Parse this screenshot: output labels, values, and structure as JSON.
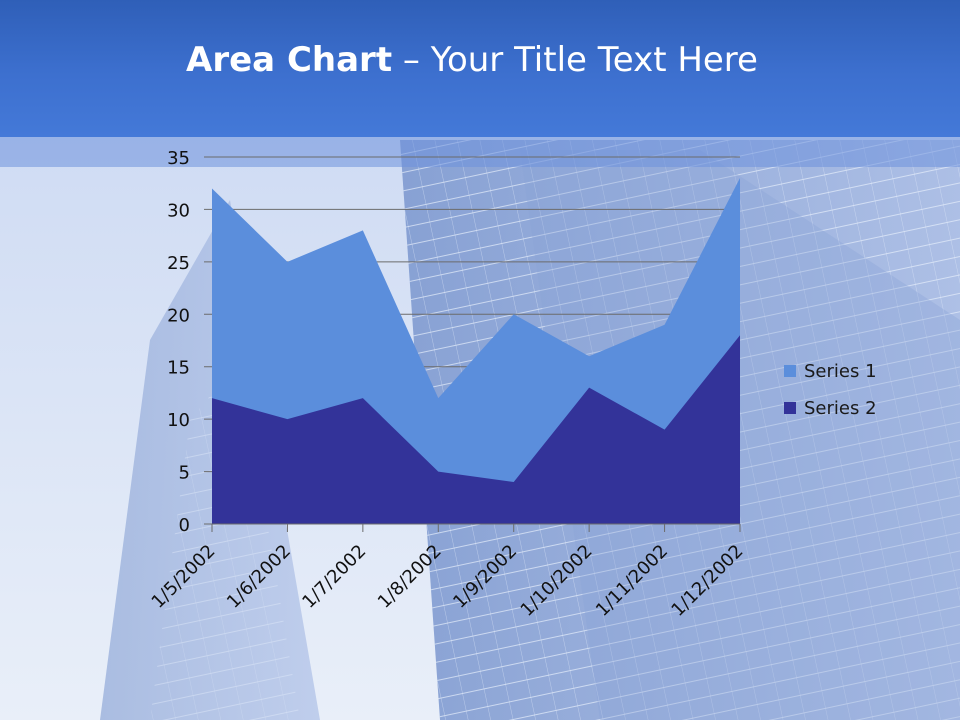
{
  "slide": {
    "title_bold": "Area Chart",
    "title_rest": " – Your Title Text Here"
  },
  "colors": {
    "series1": "#5b8edc",
    "series2": "#333399",
    "grid": "#6b6b6b",
    "axis_text": "#111111"
  },
  "chart_data": {
    "type": "area",
    "categories": [
      "1/5/2002",
      "1/6/2002",
      "1/7/2002",
      "1/8/2002",
      "1/9/2002",
      "1/10/2002",
      "1/11/2002",
      "1/12/2002"
    ],
    "series": [
      {
        "name": "Series 1",
        "values": [
          32,
          25,
          28,
          12,
          20,
          16,
          19,
          33
        ]
      },
      {
        "name": "Series 2",
        "values": [
          12,
          10,
          12,
          5,
          4,
          13,
          9,
          18
        ]
      }
    ],
    "ylim": [
      0,
      35
    ],
    "yticks": [
      0,
      5,
      10,
      15,
      20,
      25,
      30,
      35
    ],
    "grid": true,
    "legend_position": "right",
    "title": "",
    "xlabel": "",
    "ylabel": ""
  }
}
